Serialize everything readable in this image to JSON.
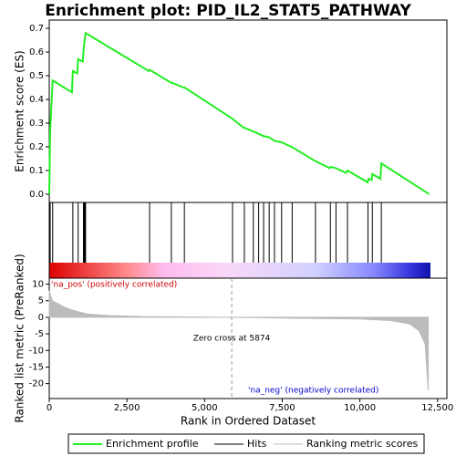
{
  "chart_data": {
    "type": "gsea",
    "title": "Enrichment plot: PID_IL2_STAT5_PATHWAY",
    "xlabel": "Rank in Ordered Dataset",
    "ylabel": "Enrichment score (ES)",
    "y2label": "Ranked list metric (PreRanked)",
    "xlim": [
      0,
      12800
    ],
    "xticks": [
      0,
      {
        "value": 2500,
        "label": "2,500"
      },
      {
        "value": 5000,
        "label": "5,000"
      },
      {
        "value": 7500,
        "label": "7,500"
      },
      {
        "value": 10000,
        "label": "10,000"
      },
      {
        "value": 12500,
        "label": "12,500"
      }
    ],
    "ylim": [
      -0.035,
      0.735
    ],
    "yticks": [
      {
        "value": 0,
        "label": "0.0"
      },
      {
        "value": 0.1,
        "label": "0.1"
      },
      {
        "value": 0.2,
        "label": "0.2"
      },
      {
        "value": 0.3,
        "label": "0.3"
      },
      {
        "value": 0.4,
        "label": "0.4"
      },
      {
        "value": 0.5,
        "label": "0.5"
      },
      {
        "value": 0.6,
        "label": "0.6"
      },
      {
        "value": 0.7,
        "label": "0.7"
      }
    ],
    "y2lim": [
      -24.5,
      11.8
    ],
    "y2ticks": [
      10,
      5,
      0,
      -5,
      -10,
      -15,
      -20
    ],
    "es": {
      "name": "Enrichment profile",
      "color": "#22ee22",
      "x": [
        0,
        30,
        110,
        730,
        760,
        900,
        930,
        1080,
        1100,
        1130,
        1170,
        3200,
        3230,
        3930,
        3960,
        4330,
        4360,
        5880,
        6260,
        6290,
        6560,
        6740,
        6900,
        7080,
        7250,
        7450,
        7800,
        8560,
        9030,
        9060,
        9220,
        9560,
        9600,
        10250,
        10280,
        10380,
        10400,
        10660,
        10690,
        12230
      ],
      "values": [
        0,
        0.27,
        0.48,
        0.43,
        0.52,
        0.51,
        0.57,
        0.56,
        0.6,
        0.64,
        0.68,
        0.52,
        0.525,
        0.47,
        0.47,
        0.45,
        0.45,
        0.32,
        0.28,
        0.28,
        0.265,
        0.255,
        0.245,
        0.24,
        0.225,
        0.22,
        0.2,
        0.14,
        0.11,
        0.115,
        0.11,
        0.09,
        0.1,
        0.05,
        0.065,
        0.06,
        0.085,
        0.065,
        0.13,
        0
      ]
    },
    "hits": {
      "name": "Hits",
      "color": "#000000",
      "x": [
        30,
        110,
        760,
        930,
        1100,
        1130,
        1150,
        1170,
        3230,
        3930,
        4350,
        5900,
        6280,
        6570,
        6740,
        6900,
        7080,
        7250,
        7480,
        7820,
        8570,
        9050,
        9230,
        9600,
        10260,
        10400,
        10690
      ]
    },
    "metric": {
      "name": "Ranking metric scores",
      "color": "#bbbbbb",
      "x": [
        0,
        100,
        500,
        800,
        1200,
        2000,
        3000,
        5874,
        8000,
        10000,
        11000,
        11600,
        11900,
        12100,
        12200
      ],
      "values": [
        8,
        5,
        3,
        2,
        1,
        0.5,
        0.2,
        0,
        -0.3,
        -0.5,
        -1,
        -2,
        -4,
        -8,
        -22
      ]
    },
    "zero_cross": 5874,
    "zero_cross_label": "Zero cross at 5874",
    "pos_label": "'na_pos' (positively correlated)",
    "neg_label": "'na_neg' (negatively correlated)"
  }
}
